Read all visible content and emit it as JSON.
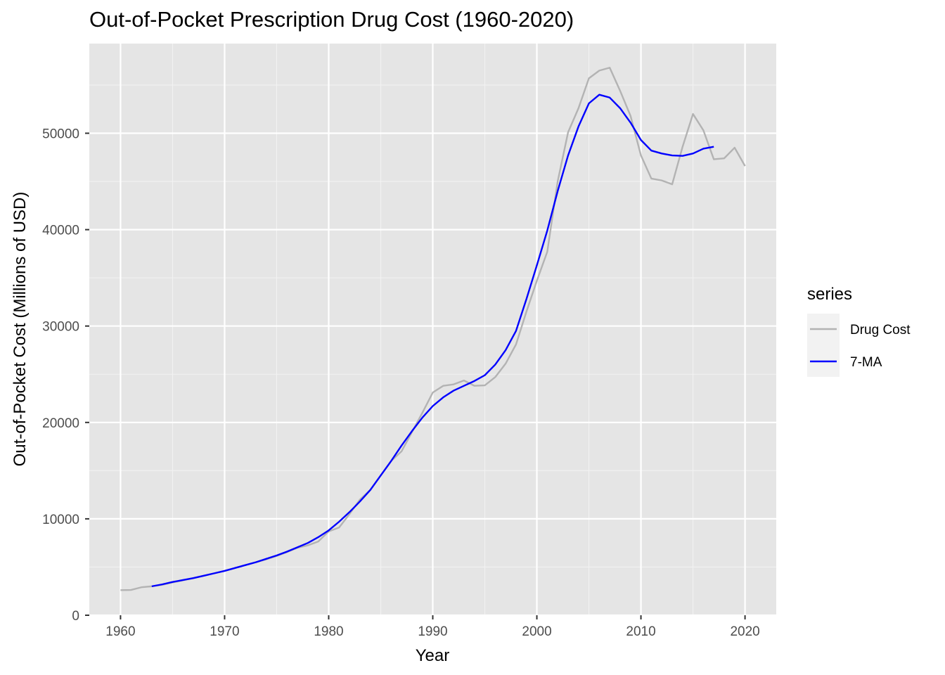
{
  "chart_data": {
    "type": "line",
    "title": "Out-of-Pocket Prescription Drug Cost (1960-2020)",
    "xlabel": "Year",
    "ylabel": "Out-of-Pocket Cost (Millions of USD)",
    "xlim": [
      1957.0,
      2023.0
    ],
    "ylim": [
      0,
      59300
    ],
    "x_ticks": [
      1960,
      1970,
      1980,
      1990,
      2000,
      2010,
      2020
    ],
    "y_ticks": [
      0,
      10000,
      20000,
      30000,
      40000,
      50000
    ],
    "grid": true,
    "panel_background": "#e5e5e5",
    "legend": {
      "title": "series",
      "position": "right"
    },
    "series": [
      {
        "name": "Drug Cost",
        "color": "#b3b3b3",
        "x": [
          1960,
          1961,
          1962,
          1963,
          1964,
          1965,
          1966,
          1967,
          1968,
          1969,
          1970,
          1971,
          1972,
          1973,
          1974,
          1975,
          1976,
          1977,
          1978,
          1979,
          1980,
          1981,
          1982,
          1983,
          1984,
          1985,
          1986,
          1987,
          1988,
          1989,
          1990,
          1991,
          1992,
          1993,
          1994,
          1995,
          1996,
          1997,
          1998,
          1999,
          2000,
          2001,
          2002,
          2003,
          2004,
          2005,
          2006,
          2007,
          2008,
          2009,
          2010,
          2011,
          2012,
          2013,
          2014,
          2015,
          2016,
          2017,
          2018,
          2019,
          2020
        ],
        "values": [
          2600,
          2620,
          2900,
          3000,
          3150,
          3400,
          3620,
          3850,
          4100,
          4350,
          4600,
          4900,
          5200,
          5500,
          5800,
          6150,
          6550,
          7000,
          7250,
          7650,
          8700,
          9100,
          10500,
          12000,
          13000,
          14500,
          16000,
          17000,
          19000,
          21000,
          23100,
          23800,
          23950,
          24350,
          23800,
          23850,
          24700,
          26100,
          28100,
          31500,
          34700,
          37700,
          45000,
          50100,
          52600,
          55700,
          56500,
          56800,
          54400,
          51800,
          47700,
          45300,
          45100,
          44700,
          48600,
          52000,
          50300,
          47300,
          47400,
          48500,
          46600
        ]
      },
      {
        "name": "7-MA",
        "color": "#0000ff",
        "x": [
          1963,
          1964,
          1965,
          1966,
          1967,
          1968,
          1969,
          1970,
          1971,
          1972,
          1973,
          1974,
          1975,
          1976,
          1977,
          1978,
          1979,
          1980,
          1981,
          1982,
          1983,
          1984,
          1985,
          1986,
          1987,
          1988,
          1989,
          1990,
          1991,
          1992,
          1993,
          1994,
          1995,
          1996,
          1997,
          1998,
          1999,
          2000,
          2001,
          2002,
          2003,
          2004,
          2005,
          2006,
          2007,
          2008,
          2009,
          2010,
          2011,
          2012,
          2013,
          2014,
          2015,
          2016,
          2017
        ],
        "values": [
          3000,
          3200,
          3450,
          3650,
          3850,
          4100,
          4350,
          4600,
          4900,
          5200,
          5500,
          5850,
          6200,
          6600,
          7050,
          7500,
          8100,
          8800,
          9700,
          10700,
          11800,
          13000,
          14500,
          16000,
          17600,
          19100,
          20500,
          21700,
          22600,
          23300,
          23800,
          24300,
          24900,
          26000,
          27500,
          29500,
          32800,
          36300,
          39900,
          44000,
          47700,
          50700,
          53100,
          54000,
          53700,
          52600,
          51100,
          49300,
          48200,
          47900,
          47700,
          47650,
          47900,
          48400,
          48600
        ]
      }
    ]
  }
}
